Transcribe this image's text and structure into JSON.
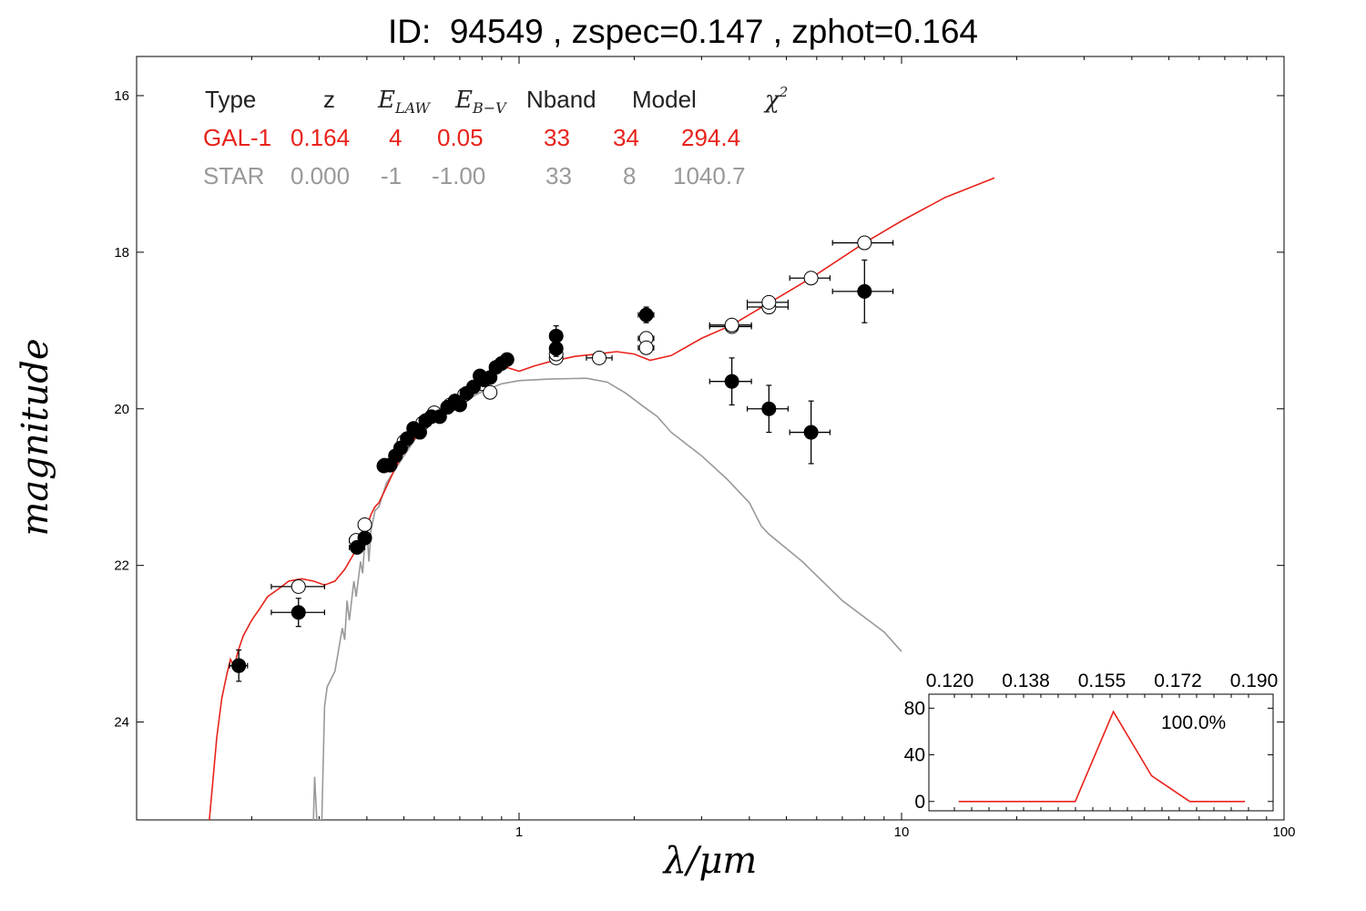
{
  "chart_data": [
    {
      "type": "scatter",
      "title": "ID:  94549 , zspec=0.147 , zphot=0.164",
      "xlabel": "λ/μm",
      "ylabel": "magnitude",
      "x_scale": "log",
      "xlim": [
        0.1,
        100
      ],
      "ylim": [
        25.25,
        15.5
      ],
      "x_ticks": [
        "1",
        "10",
        "100"
      ],
      "y_ticks": [
        "16",
        "18",
        "20",
        "22",
        "24"
      ],
      "grid": false,
      "colors": {
        "gal": "#e8231b",
        "star": "#999999",
        "obs": "#000000"
      },
      "table": {
        "header": [
          "Type",
          "z",
          "E_LAW",
          "E_B−V",
          "Nband",
          "Model",
          "χ²"
        ],
        "rows": [
          {
            "type": "GAL-1",
            "z": "0.164",
            "elaw": "4",
            "ebv": "0.05",
            "nband": "33",
            "model": "34",
            "chi2": "294.4"
          },
          {
            "type": "STAR",
            "z": "0.000",
            "elaw": "-1",
            "ebv": "-1.00",
            "nband": "33",
            "model": "8",
            "chi2": "1040.7"
          }
        ]
      },
      "series": [
        {
          "kind": "line",
          "role": "galaxy-model",
          "color": "#e8231b",
          "points": [
            [
              0.155,
              25.25
            ],
            [
              0.158,
              24.8
            ],
            [
              0.162,
              24.2
            ],
            [
              0.167,
              23.7
            ],
            [
              0.172,
              23.4
            ],
            [
              0.176,
              23.2
            ],
            [
              0.18,
              23.3
            ],
            [
              0.184,
              23.1
            ],
            [
              0.19,
              22.9
            ],
            [
              0.2,
              22.7
            ],
            [
              0.21,
              22.55
            ],
            [
              0.22,
              22.4
            ],
            [
              0.235,
              22.3
            ],
            [
              0.25,
              22.2
            ],
            [
              0.27,
              22.17
            ],
            [
              0.29,
              22.2
            ],
            [
              0.31,
              22.25
            ],
            [
              0.33,
              22.2
            ],
            [
              0.35,
              22.05
            ],
            [
              0.37,
              21.85
            ],
            [
              0.385,
              21.65
            ],
            [
              0.39,
              21.55
            ],
            [
              0.4,
              21.5
            ],
            [
              0.41,
              21.35
            ],
            [
              0.42,
              21.25
            ],
            [
              0.43,
              21.2
            ],
            [
              0.45,
              21.0
            ],
            [
              0.47,
              20.8
            ],
            [
              0.5,
              20.55
            ],
            [
              0.55,
              20.3
            ],
            [
              0.6,
              20.1
            ],
            [
              0.65,
              19.98
            ],
            [
              0.7,
              19.88
            ],
            [
              0.75,
              19.75
            ],
            [
              0.8,
              19.65
            ],
            [
              0.85,
              19.55
            ],
            [
              0.9,
              19.45
            ],
            [
              1.0,
              19.52
            ],
            [
              1.1,
              19.45
            ],
            [
              1.2,
              19.4
            ],
            [
              1.4,
              19.33
            ],
            [
              1.6,
              19.3
            ],
            [
              1.8,
              19.27
            ],
            [
              2.0,
              19.3
            ],
            [
              2.2,
              19.38
            ],
            [
              2.5,
              19.32
            ],
            [
              3.0,
              19.1
            ],
            [
              3.6,
              18.93
            ],
            [
              4.5,
              18.65
            ],
            [
              5.8,
              18.33
            ],
            [
              8.0,
              17.88
            ],
            [
              10,
              17.6
            ],
            [
              13,
              17.3
            ],
            [
              17.5,
              17.05
            ]
          ]
        },
        {
          "kind": "line",
          "role": "star-model",
          "color": "#999999",
          "points": [
            [
              0.29,
              25.25
            ],
            [
              0.292,
              24.7
            ],
            [
              0.296,
              25.25
            ],
            [
              0.305,
              25.25
            ],
            [
              0.31,
              23.8
            ],
            [
              0.315,
              23.55
            ],
            [
              0.33,
              23.35
            ],
            [
              0.345,
              22.8
            ],
            [
              0.35,
              22.95
            ],
            [
              0.355,
              22.45
            ],
            [
              0.36,
              22.7
            ],
            [
              0.37,
              22.2
            ],
            [
              0.375,
              22.4
            ],
            [
              0.385,
              21.95
            ],
            [
              0.39,
              22.1
            ],
            [
              0.395,
              21.7
            ],
            [
              0.4,
              21.55
            ],
            [
              0.405,
              21.95
            ],
            [
              0.41,
              21.55
            ],
            [
              0.42,
              21.3
            ],
            [
              0.43,
              21.25
            ],
            [
              0.45,
              20.95
            ],
            [
              0.5,
              20.6
            ],
            [
              0.55,
              20.3
            ],
            [
              0.6,
              20.15
            ],
            [
              0.7,
              19.93
            ],
            [
              0.8,
              19.78
            ],
            [
              0.9,
              19.68
            ],
            [
              1.0,
              19.64
            ],
            [
              1.2,
              19.62
            ],
            [
              1.5,
              19.61
            ],
            [
              1.7,
              19.66
            ],
            [
              1.9,
              19.8
            ],
            [
              2.1,
              19.96
            ],
            [
              2.3,
              20.1
            ],
            [
              2.5,
              20.3
            ],
            [
              3.0,
              20.6
            ],
            [
              3.5,
              20.9
            ],
            [
              4.0,
              21.2
            ],
            [
              4.3,
              21.5
            ],
            [
              4.5,
              21.6
            ],
            [
              5.5,
              21.95
            ],
            [
              7.0,
              22.45
            ],
            [
              9.0,
              22.85
            ],
            [
              10,
              23.1
            ]
          ]
        },
        {
          "kind": "markers",
          "role": "observed",
          "fill": "#000000",
          "points": [
            {
              "x": 0.185,
              "y": 23.28,
              "xerr": [
                0.175,
                0.195
              ],
              "yerr": 0.2
            },
            {
              "x": 0.265,
              "y": 22.6,
              "xerr": [
                0.225,
                0.31
              ],
              "yerr": 0.18
            },
            {
              "x": 0.377,
              "y": 21.77,
              "xerr": [
                0.36,
                0.395
              ],
              "yerr": 0.08
            },
            {
              "x": 0.395,
              "y": 21.65,
              "xerr": [
                0.38,
                0.41
              ],
              "yerr": 0.06
            },
            {
              "x": 0.443,
              "y": 20.73,
              "yerr": 0.05
            },
            {
              "x": 0.46,
              "y": 20.72,
              "yerr": 0.05
            },
            {
              "x": 0.475,
              "y": 20.6,
              "yerr": 0.05
            },
            {
              "x": 0.49,
              "y": 20.5,
              "yerr": 0.05
            },
            {
              "x": 0.51,
              "y": 20.38,
              "yerr": 0.05
            },
            {
              "x": 0.53,
              "y": 20.25,
              "yerr": 0.05
            },
            {
              "x": 0.55,
              "y": 20.3,
              "yerr": 0.05
            },
            {
              "x": 0.57,
              "y": 20.15,
              "yerr": 0.05
            },
            {
              "x": 0.59,
              "y": 20.1,
              "yerr": 0.05
            },
            {
              "x": 0.62,
              "y": 20.1,
              "yerr": 0.05
            },
            {
              "x": 0.65,
              "y": 19.98,
              "yerr": 0.05
            },
            {
              "x": 0.68,
              "y": 19.9,
              "yerr": 0.05
            },
            {
              "x": 0.7,
              "y": 19.95,
              "yerr": 0.05
            },
            {
              "x": 0.73,
              "y": 19.8,
              "yerr": 0.05
            },
            {
              "x": 0.76,
              "y": 19.72,
              "yerr": 0.05
            },
            {
              "x": 0.79,
              "y": 19.58,
              "yerr": 0.05
            },
            {
              "x": 0.81,
              "y": 19.63,
              "yerr": 0.05
            },
            {
              "x": 0.84,
              "y": 19.6,
              "yerr": 0.05
            },
            {
              "x": 0.87,
              "y": 19.47,
              "yerr": 0.05
            },
            {
              "x": 0.9,
              "y": 19.42,
              "yerr": 0.05
            },
            {
              "x": 0.93,
              "y": 19.37,
              "yerr": 0.05
            },
            {
              "x": 1.25,
              "y": 19.07,
              "xerr": [
                1.21,
                1.29
              ],
              "yerr": 0.13
            },
            {
              "x": 1.25,
              "y": 19.23,
              "xerr": [
                1.21,
                1.29
              ],
              "yerr": 0.1
            },
            {
              "x": 2.15,
              "y": 18.8,
              "xerr": [
                2.05,
                2.25
              ],
              "yerr": 0.1
            },
            {
              "x": 3.6,
              "y": 19.65,
              "xerr": [
                3.15,
                4.05
              ],
              "yerr": 0.3
            },
            {
              "x": 4.5,
              "y": 20.0,
              "xerr": [
                3.95,
                5.05
              ],
              "yerr": 0.3
            },
            {
              "x": 5.8,
              "y": 20.3,
              "xerr": [
                5.1,
                6.5
              ],
              "yerr": 0.4
            },
            {
              "x": 8.0,
              "y": 18.5,
              "xerr": [
                6.6,
                9.5
              ],
              "yerr": 0.4
            }
          ]
        },
        {
          "kind": "markers",
          "role": "model-magnitude",
          "fill": "#ffffff",
          "points": [
            {
              "x": 0.185,
              "y": 23.28
            },
            {
              "x": 0.265,
              "y": 22.27,
              "xerr": [
                0.225,
                0.31
              ]
            },
            {
              "x": 0.375,
              "y": 21.68,
              "xerr": [
                0.36,
                0.39
              ]
            },
            {
              "x": 0.395,
              "y": 21.48,
              "xerr": [
                0.38,
                0.41
              ]
            },
            {
              "x": 0.445,
              "y": 20.72
            },
            {
              "x": 0.5,
              "y": 20.42
            },
            {
              "x": 0.56,
              "y": 20.18
            },
            {
              "x": 0.6,
              "y": 20.05
            },
            {
              "x": 0.66,
              "y": 19.95
            },
            {
              "x": 0.72,
              "y": 19.82
            },
            {
              "x": 0.8,
              "y": 19.68
            },
            {
              "x": 0.84,
              "y": 19.79
            },
            {
              "x": 1.25,
              "y": 19.35,
              "xerr": [
                1.21,
                1.29
              ]
            },
            {
              "x": 1.25,
              "y": 19.3,
              "xerr": [
                1.21,
                1.29
              ]
            },
            {
              "x": 1.62,
              "y": 19.35,
              "xerr": [
                1.5,
                1.75
              ]
            },
            {
              "x": 2.15,
              "y": 19.1,
              "xerr": [
                2.05,
                2.25
              ]
            },
            {
              "x": 2.15,
              "y": 19.22,
              "xerr": [
                2.05,
                2.25
              ]
            },
            {
              "x": 3.6,
              "y": 18.95,
              "xerr": [
                3.15,
                4.05
              ]
            },
            {
              "x": 3.6,
              "y": 18.93,
              "xerr": [
                3.15,
                4.05
              ]
            },
            {
              "x": 4.5,
              "y": 18.7,
              "xerr": [
                3.95,
                5.05
              ]
            },
            {
              "x": 4.5,
              "y": 18.64,
              "xerr": [
                3.95,
                5.05
              ]
            },
            {
              "x": 5.8,
              "y": 18.33,
              "xerr": [
                5.1,
                6.5
              ]
            },
            {
              "x": 8.0,
              "y": 17.88,
              "xerr": [
                6.6,
                9.5
              ]
            }
          ]
        }
      ]
    },
    {
      "type": "line",
      "inset": true,
      "annotation": "100.0%",
      "x_ticks": [
        "0.120",
        "0.138",
        "0.155",
        "0.172",
        "0.190"
      ],
      "y_ticks": [
        "80",
        "40",
        "0"
      ],
      "xlim": [
        0.12,
        0.19
      ],
      "ylim": [
        -8,
        92
      ],
      "color": "#e8231b",
      "x": [
        0.121,
        0.127,
        0.133,
        0.139,
        0.145,
        0.1485,
        0.152,
        0.158,
        0.164,
        0.17,
        0.176,
        0.182,
        0.188
      ],
      "y": [
        0,
        0,
        0,
        0,
        0,
        0,
        0,
        0,
        0,
        0,
        0,
        0,
        0
      ],
      "peak_x": [
        0.1485,
        0.1575,
        0.1665,
        0.1755,
        0.1885
      ],
      "peak_y": [
        0,
        77,
        22,
        0,
        0
      ]
    }
  ]
}
